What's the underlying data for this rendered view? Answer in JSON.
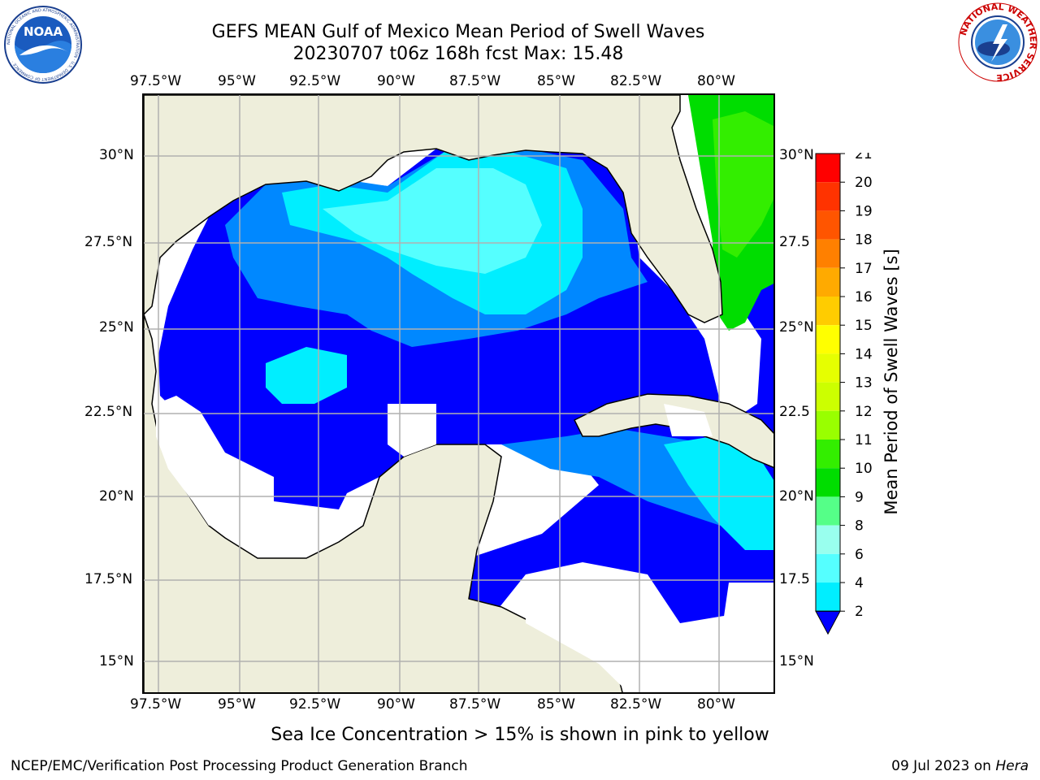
{
  "title": {
    "line1": "GEFS MEAN Gulf of Mexico Mean Period of Swell Waves",
    "line2": "20230707 t06z 168h fcst   Max: 15.48"
  },
  "logos": {
    "left": {
      "name": "noaa-logo",
      "text": "NOAA",
      "ring_text": "NATIONAL OCEANIC AND ATMOSPHERIC ADMINISTRATION · U.S. DEPARTMENT OF COMMERCE ·"
    },
    "right": {
      "name": "nws-logo",
      "ring_text": "NATIONAL WEATHER SERVICE"
    }
  },
  "map": {
    "lon_ticks_top": [
      "97.5°W",
      "95°W",
      "92.5°W",
      "90°W",
      "87.5°W",
      "85°W",
      "82.5°W",
      "80°W"
    ],
    "lon_ticks_bottom": [
      "97.5°W",
      "95°W",
      "92.5°W",
      "90°W",
      "87.5°W",
      "85°W",
      "82.5°W",
      "80°W"
    ],
    "lat_ticks_left": [
      "30°N",
      "27.5°N",
      "25°N",
      "22.5°N",
      "20°N",
      "17.5°N",
      "15°N"
    ],
    "lat_ticks_right": [
      "30°N",
      "27.5",
      "25°N",
      "22.5",
      "20°N",
      "17.5",
      "15°N"
    ],
    "land_color": "#eeeedb",
    "grid_color": "#b0b0b0"
  },
  "colorbar": {
    "label": "Mean Period of Swell Waves [s]",
    "ticks": [
      "21",
      "20",
      "19",
      "18",
      "17",
      "16",
      "15",
      "14",
      "13",
      "12",
      "11",
      "10",
      "9",
      "8",
      "6",
      "4",
      "2"
    ],
    "colors": [
      "#ff0000",
      "#ff3300",
      "#ff5500",
      "#ff8000",
      "#ffaa00",
      "#ffcc00",
      "#ffff00",
      "#e6ff00",
      "#ccff00",
      "#99ff00",
      "#33ee00",
      "#00dd00",
      "#55ff88",
      "#99ffee",
      "#55ffff",
      "#00eeff",
      "#0088ff",
      "#0000ff"
    ],
    "extend_color": "#0000ff"
  },
  "footnote": "Sea Ice Concentration > 15% is shown in pink to yellow",
  "credit": "NCEP/EMC/Verification Post Processing Product Generation Branch",
  "date": {
    "text": "09 Jul 2023 on",
    "host": "Hera"
  }
}
